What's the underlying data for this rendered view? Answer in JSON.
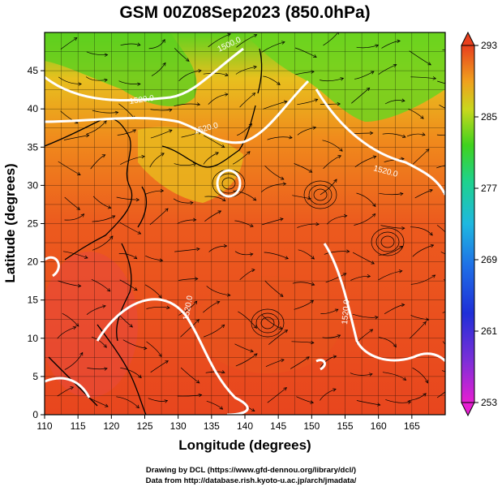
{
  "title": "GSM 00Z08Sep2023 (850.0hPa)",
  "xlabel": "Longitude (degrees)",
  "ylabel": "Latitude  (degrees)",
  "x_ticks": [
    110,
    115,
    120,
    125,
    130,
    135,
    140,
    145,
    150,
    155,
    160,
    165
  ],
  "y_ticks": [
    0,
    5,
    10,
    15,
    20,
    25,
    30,
    35,
    40,
    45
  ],
  "xlim": [
    110,
    170
  ],
  "ylim": [
    0,
    50
  ],
  "colorbar": {
    "ticks": [
      293,
      285,
      277,
      269,
      261,
      253
    ],
    "range": [
      253,
      293
    ]
  },
  "contour_labels": [
    "1500.0",
    "1520.0",
    "1520.0",
    "1520.0",
    "1520.0",
    "1520.0"
  ],
  "credits": {
    "line1": "Drawing by DCL (https://www.gfd-dennou.org/library/dcl/)",
    "line2": "Data from http://database.rish.kyoto-u.ac.jp/arch/jmadata/"
  },
  "colors": {
    "warm": "#e8401e",
    "orange": "#f07a1c",
    "yellow": "#e8c81e",
    "green": "#3fd21e",
    "contour": "#ffffff"
  }
}
